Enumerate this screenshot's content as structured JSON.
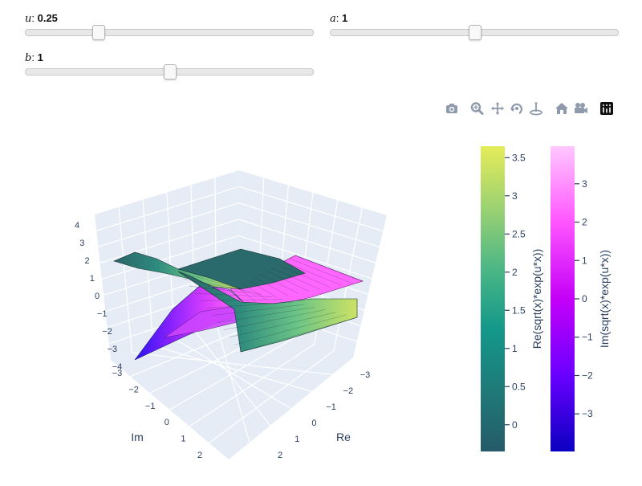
{
  "sliders": {
    "u": {
      "name": "u",
      "value": "0.25",
      "level": 0.25
    },
    "a": {
      "name": "a",
      "value": "1",
      "level": 0.5
    },
    "b": {
      "name": "b",
      "value": "1",
      "level": 0.5
    }
  },
  "modebar": {
    "icons": [
      "camera-icon",
      "zoom-icon",
      "pan-icon",
      "orbit-rotation-icon",
      "turntable-rotation-icon",
      "reset-view-icon",
      "last-save-view-icon",
      "plotly-logo-icon"
    ]
  },
  "scene": {
    "xaxis": {
      "title": "Re",
      "ticks": [
        "−3",
        "−2",
        "−1",
        "0",
        "1",
        "2"
      ]
    },
    "yaxis": {
      "title": "Im",
      "ticks": [
        "−3",
        "−2",
        "−1",
        "0",
        "1",
        "2"
      ]
    },
    "zaxis": {
      "title": "",
      "ticks": [
        "−4",
        "−3",
        "−2",
        "−1",
        "0",
        "1",
        "2",
        "3",
        "4"
      ]
    },
    "background": "#e5ecf6"
  },
  "colorbars": {
    "real": {
      "title": "Re(sqrt(x)*exp(u*x))",
      "ticks": [
        "0",
        "0.5",
        "1",
        "1.5",
        "2",
        "2.5",
        "3",
        "3.5"
      ],
      "range": [
        -0.35,
        3.65
      ],
      "colorscale": [
        "#255a68",
        "#1f7a78",
        "#13988a",
        "#4cb785",
        "#9dd272",
        "#e5ec58"
      ]
    },
    "imag": {
      "title": "Im(sqrt(x)*exp(u*x))",
      "ticks": [
        "−3",
        "−2",
        "−1",
        "0",
        "1",
        "2",
        "3"
      ],
      "range": [
        -3.98,
        3.98
      ],
      "colorscale": [
        "#0a00c0",
        "#6a00ff",
        "#c400f8",
        "#ff55ff",
        "#ffc8ff"
      ]
    }
  },
  "colors": {
    "surface_real": [
      "#2a6368",
      "#2d8a7d",
      "#6cc486",
      "#cde264"
    ],
    "surface_imag": [
      "#2b13f0",
      "#8a22ff",
      "#dd40ff",
      "#ff72ff"
    ],
    "font": "#2a3f5f",
    "grid": "#ffffff"
  }
}
